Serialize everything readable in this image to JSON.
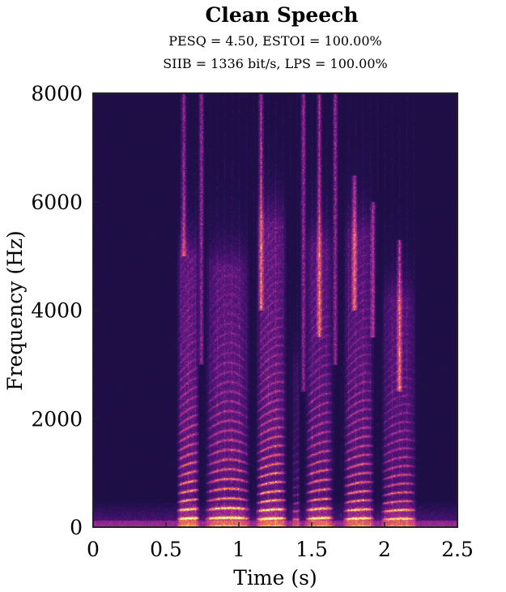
{
  "chart_data": {
    "type": "heatmap",
    "subtype": "spectrogram",
    "title": "Clean Speech",
    "subtitle_lines": [
      "PESQ = 4.50, ESTOI = 100.00%",
      "SIIB = 1336 bit/s, LPS = 100.00%"
    ],
    "xlabel": "Time (s)",
    "ylabel": "Frequency (Hz)",
    "xlim": [
      0,
      2.5
    ],
    "ylim": [
      0,
      8000
    ],
    "x_ticks": [
      0,
      0.5,
      1,
      1.5,
      2,
      2.5
    ],
    "x_tick_labels": [
      "0",
      "0.5",
      "1",
      "1.5",
      "2",
      "2.5"
    ],
    "y_ticks": [
      0,
      2000,
      4000,
      6000,
      8000
    ],
    "y_tick_labels": [
      "0",
      "2000",
      "4000",
      "6000",
      "8000"
    ],
    "colormap": "inferno",
    "colorbar": false,
    "grid": false,
    "background_color": "#1e1247",
    "speech_segments": [
      {
        "start": 0.57,
        "end": 0.73,
        "f0": 155,
        "top_hz": 5000,
        "strength": 1.0
      },
      {
        "start": 0.76,
        "end": 1.08,
        "f0": 160,
        "top_hz": 4800,
        "strength": 0.95
      },
      {
        "start": 1.11,
        "end": 1.33,
        "f0": 150,
        "top_hz": 5600,
        "strength": 1.0
      },
      {
        "start": 1.36,
        "end": 1.42,
        "f0": 145,
        "top_hz": 3000,
        "strength": 0.5
      },
      {
        "start": 1.45,
        "end": 1.65,
        "f0": 158,
        "top_hz": 5200,
        "strength": 0.9
      },
      {
        "start": 1.71,
        "end": 1.93,
        "f0": 150,
        "top_hz": 5400,
        "strength": 0.9
      },
      {
        "start": 1.97,
        "end": 2.22,
        "f0": 145,
        "top_hz": 4200,
        "strength": 0.85
      }
    ],
    "fricative_bursts": [
      {
        "time": 0.62,
        "low_hz": 5000,
        "high_hz": 8000
      },
      {
        "time": 0.74,
        "low_hz": 3000,
        "high_hz": 8000
      },
      {
        "time": 1.15,
        "low_hz": 4000,
        "high_hz": 8000
      },
      {
        "time": 1.44,
        "low_hz": 2500,
        "high_hz": 8000
      },
      {
        "time": 1.55,
        "low_hz": 3500,
        "high_hz": 8000
      },
      {
        "time": 1.66,
        "low_hz": 3000,
        "high_hz": 8000
      },
      {
        "time": 1.79,
        "low_hz": 4000,
        "high_hz": 6500
      },
      {
        "time": 1.92,
        "low_hz": 3500,
        "high_hz": 6000
      },
      {
        "time": 2.1,
        "low_hz": 2500,
        "high_hz": 5300
      }
    ]
  }
}
